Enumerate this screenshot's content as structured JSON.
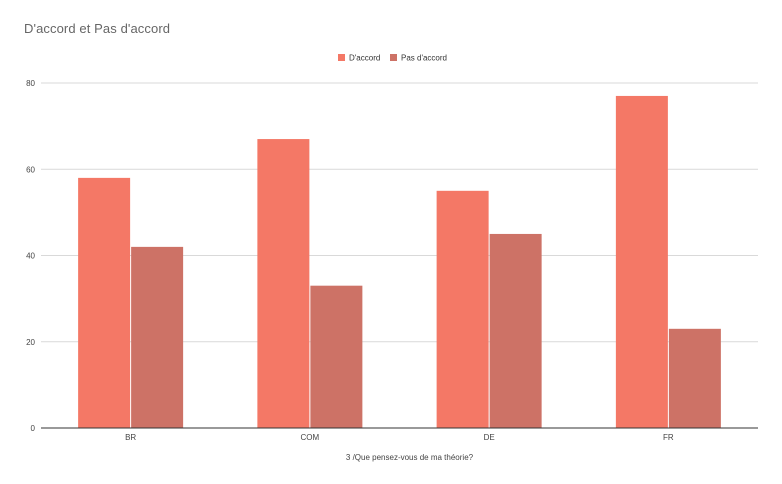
{
  "chart_data": {
    "type": "bar",
    "title": "D'accord et Pas d'accord",
    "xlabel": "3 /Que pensez-vous de ma théorie?",
    "ylabel": "",
    "categories": [
      "BR",
      "COM",
      "DE",
      "FR"
    ],
    "series": [
      {
        "name": "D'accord",
        "values": [
          58,
          67,
          55,
          77
        ],
        "color": "#f47866"
      },
      {
        "name": "Pas d'accord",
        "values": [
          42,
          33,
          45,
          23
        ],
        "color": "#cd7266"
      }
    ],
    "ylim": [
      0,
      80
    ],
    "yticks": [
      0,
      20,
      40,
      60,
      80
    ],
    "grid": true,
    "legend_position": "top-center"
  }
}
